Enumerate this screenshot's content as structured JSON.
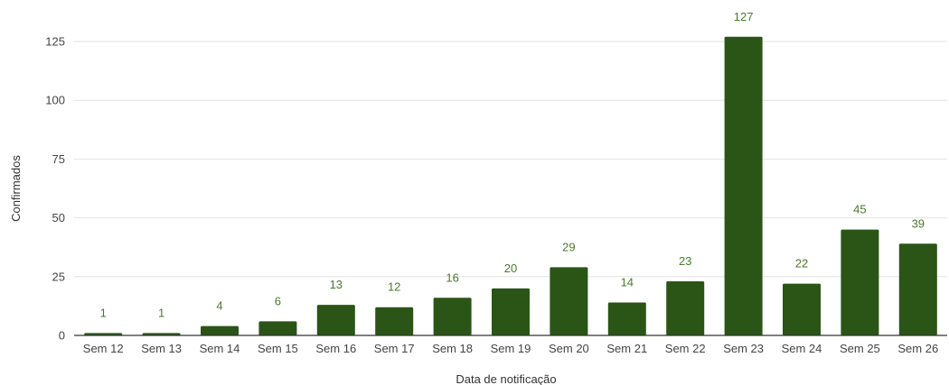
{
  "chart_data": {
    "type": "bar",
    "title": "",
    "xlabel": "Data de notificação",
    "ylabel": "Confirmados",
    "categories": [
      "Sem 12",
      "Sem 13",
      "Sem 14",
      "Sem 15",
      "Sem 16",
      "Sem 17",
      "Sem 18",
      "Sem 19",
      "Sem 20",
      "Sem 21",
      "Sem 22",
      "Sem 23",
      "Sem 24",
      "Sem 25",
      "Sem 26"
    ],
    "values": [
      1,
      1,
      4,
      6,
      13,
      12,
      16,
      20,
      29,
      14,
      23,
      127,
      22,
      45,
      39
    ],
    "ylim": [
      0,
      125
    ],
    "yticks": [
      0,
      25,
      50,
      75,
      100,
      125
    ],
    "grid": true,
    "legend": "none",
    "colors": {
      "bar": "#2a5516",
      "data_label": "#4a7a2a"
    }
  }
}
